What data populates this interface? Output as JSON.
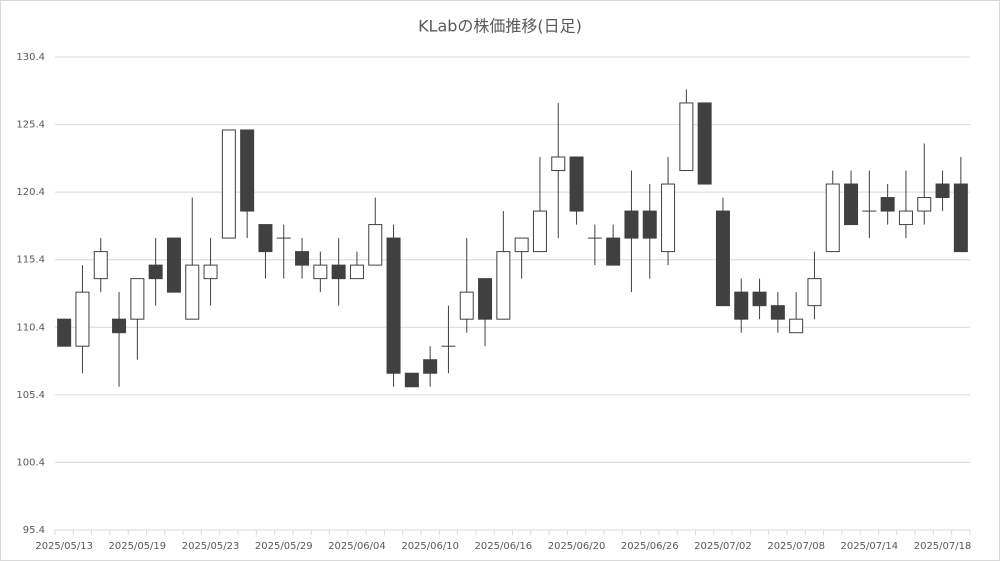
{
  "chart_data": {
    "type": "candlestick",
    "title": "KLabの株価推移(日足)",
    "categories": [
      "2025/05/13",
      null,
      null,
      null,
      "2025/05/19",
      null,
      null,
      null,
      "2025/05/23",
      null,
      null,
      null,
      "2025/05/29",
      null,
      null,
      null,
      "2025/06/04",
      null,
      null,
      null,
      "2025/06/10",
      null,
      null,
      null,
      "2025/06/16",
      null,
      null,
      null,
      "2025/06/20",
      null,
      null,
      null,
      "2025/06/26",
      null,
      null,
      null,
      "2025/07/02",
      null,
      null,
      null,
      "2025/07/08",
      null,
      null,
      null,
      "2025/07/14",
      null,
      null,
      null,
      "2025/07/18",
      null
    ],
    "open": [
      111,
      109,
      114,
      111,
      111,
      115,
      117,
      111,
      114,
      117,
      125,
      118,
      117,
      116,
      114,
      115,
      114,
      115,
      117,
      107,
      108,
      109,
      111,
      114,
      111,
      116,
      116,
      122,
      123,
      117,
      117,
      119,
      119,
      116,
      122,
      127,
      119,
      113,
      113,
      112,
      110,
      112,
      116,
      121,
      119,
      120,
      118,
      119,
      121,
      121
    ],
    "high": [
      111,
      115,
      117,
      113,
      114,
      117,
      117,
      120,
      117,
      125,
      125,
      118,
      118,
      117,
      116,
      117,
      116,
      120,
      118,
      107,
      109,
      112,
      117,
      114,
      119,
      117,
      123,
      127,
      123,
      118,
      118,
      122,
      121,
      123,
      128,
      127,
      120,
      114,
      114,
      113,
      113,
      116,
      122,
      122,
      122,
      121,
      122,
      124,
      122,
      123
    ],
    "low": [
      109,
      107,
      113,
      106,
      108,
      112,
      113,
      111,
      112,
      117,
      117,
      114,
      114,
      114,
      113,
      112,
      114,
      115,
      106,
      106,
      106,
      107,
      110,
      109,
      111,
      114,
      116,
      117,
      118,
      115,
      115,
      113,
      114,
      115,
      122,
      121,
      112,
      110,
      111,
      110,
      110,
      111,
      116,
      118,
      117,
      118,
      117,
      118,
      119,
      116
    ],
    "close": [
      109,
      113,
      116,
      110,
      114,
      114,
      113,
      115,
      115,
      125,
      119,
      116,
      117,
      115,
      115,
      114,
      115,
      118,
      107,
      106,
      107,
      109,
      113,
      111,
      116,
      117,
      119,
      123,
      119,
      117,
      115,
      117,
      117,
      121,
      127,
      121,
      112,
      111,
      112,
      111,
      111,
      114,
      121,
      118,
      119,
      119,
      119,
      120,
      120,
      116
    ],
    "up_color": "#ffffff",
    "down_color": "#404040",
    "line_color": "#404040",
    "ylim": [
      95.4,
      130.4
    ],
    "yticks": [
      95.4,
      100.4,
      105.4,
      110.4,
      115.4,
      120.4,
      125.4,
      130.4
    ],
    "grid": true
  }
}
